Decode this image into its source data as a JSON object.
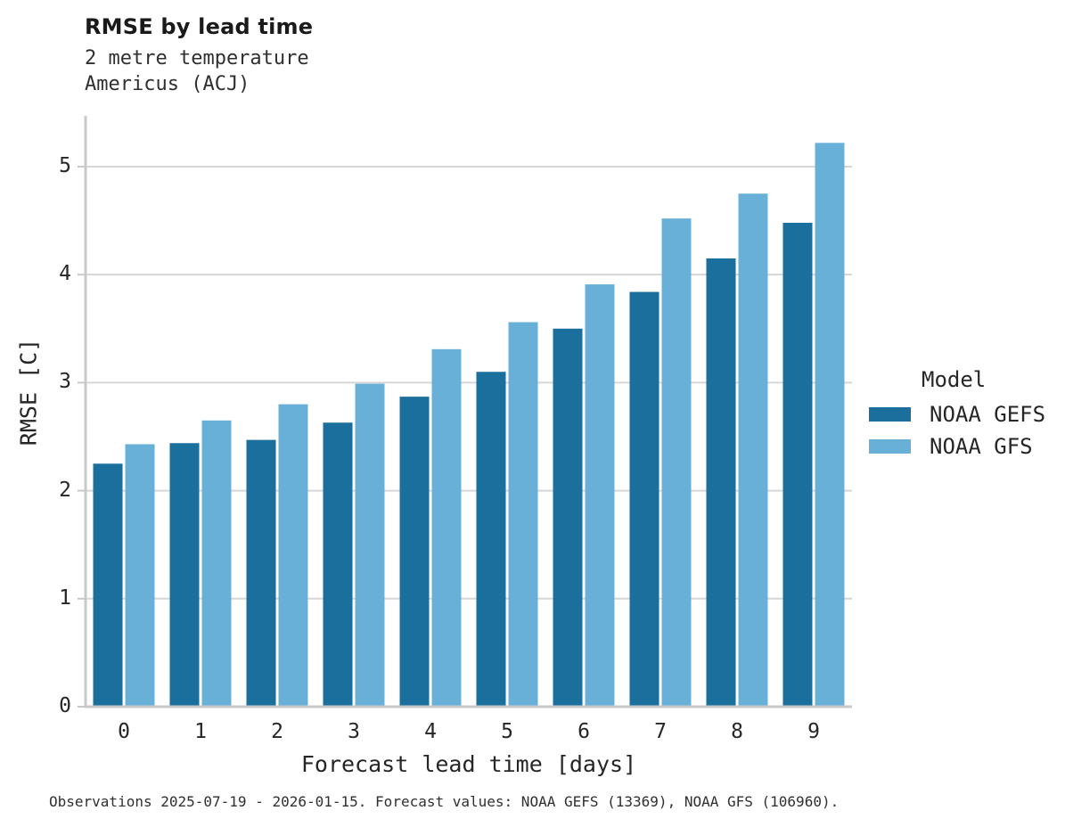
{
  "header": {
    "title": "RMSE by lead time",
    "subtitle_line1": "2 metre temperature",
    "subtitle_line2": "Americus (ACJ)"
  },
  "legend": {
    "title": "Model"
  },
  "caption": "Observations 2025-07-19 - 2026-01-15. Forecast values: NOAA GEFS (13369), NOAA GFS (106960).",
  "colors": {
    "gefs_bar": "#1b6f9d",
    "gfs_bar": "#69b0d8",
    "gridline": "#d6d6d6",
    "spine": "#c9c9c9",
    "text": "#262626"
  },
  "chart_data": {
    "type": "bar",
    "title": "RMSE by lead time",
    "subtitle": "2 metre temperature / Americus (ACJ)",
    "categories": [
      "0",
      "1",
      "2",
      "3",
      "4",
      "5",
      "6",
      "7",
      "8",
      "9"
    ],
    "series": [
      {
        "name": "NOAA GEFS",
        "color": "#1b6f9d",
        "values": [
          2.25,
          2.44,
          2.47,
          2.63,
          2.87,
          3.1,
          3.5,
          3.84,
          4.15,
          4.48
        ]
      },
      {
        "name": "NOAA GFS",
        "color": "#69b0d8",
        "values": [
          2.43,
          2.65,
          2.8,
          2.99,
          3.31,
          3.56,
          3.91,
          4.52,
          4.75,
          5.22
        ]
      }
    ],
    "xlabel": "Forecast lead time [days]",
    "ylabel": "RMSE [C]",
    "ylim": [
      0,
      5.47
    ],
    "yticks": [
      0,
      1,
      2,
      3,
      4,
      5
    ],
    "grid": true,
    "legend_title": "Model",
    "legend_position": "right"
  }
}
